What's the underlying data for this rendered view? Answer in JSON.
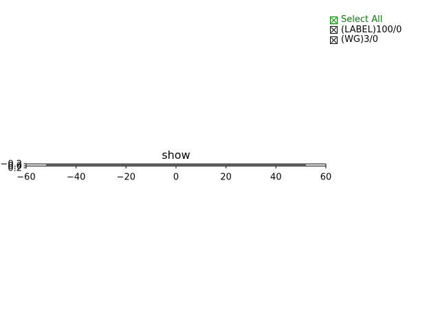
{
  "chart_data": {
    "type": "line",
    "title": "show",
    "xlabel": "",
    "ylabel": "",
    "xlim": [
      -60,
      60
    ],
    "ylim": [
      -0.2,
      0.2
    ],
    "x_ticks": [
      -60,
      -40,
      -20,
      0,
      20,
      40,
      60
    ],
    "x_tick_labels": [
      "−60",
      "−40",
      "−20",
      "0",
      "20",
      "40",
      "60"
    ],
    "y_tick_labels": [
      "−0.2",
      "0.0",
      "0.2"
    ],
    "series": [
      {
        "name": "(LABEL)100/0",
        "x": [
          -50,
          50
        ],
        "y": [
          0,
          0
        ],
        "color": "#d62728",
        "style": "dashed"
      },
      {
        "name": "(WG)3/0",
        "x": [
          -52,
          52
        ],
        "y": [
          0,
          0
        ],
        "color": "#000000",
        "style": "solid"
      }
    ],
    "grid": false
  },
  "legend": {
    "select_all_label": "Select All",
    "select_all_color": "#008000",
    "items": [
      {
        "label": "(LABEL)100/0"
      },
      {
        "label": "(WG)3/0"
      }
    ]
  }
}
